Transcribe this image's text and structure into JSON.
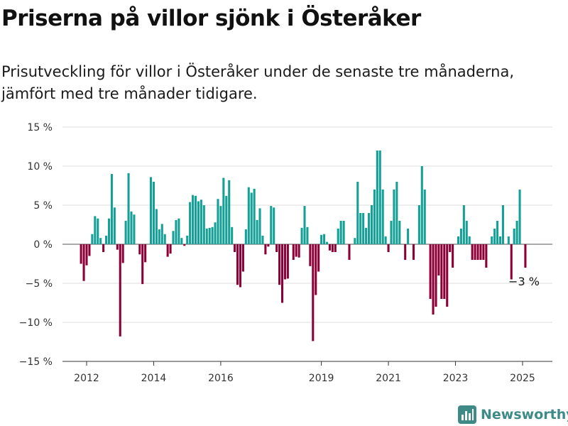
{
  "title": "Priserna på villor sjönk i Österåker",
  "subtitle": "Prisutveckling för villor i Österåker under de senaste tre månaderna, jämfört med tre månader tidigare.",
  "logo": {
    "text": "Newsworthy",
    "icon": "bar-chart-logo-icon"
  },
  "colors": {
    "positive": "#14a096",
    "negative": "#8c0037",
    "grid": "#dddddd",
    "axis": "#333333",
    "logo": "#3d8a87"
  },
  "chart_data": {
    "type": "bar",
    "x_start": "2011-11",
    "x_frequency": "monthly",
    "xticks": [
      {
        "label": "2012",
        "date": "2012-01"
      },
      {
        "label": "2014",
        "date": "2014-01"
      },
      {
        "label": "2016",
        "date": "2016-01"
      },
      {
        "label": "2019",
        "date": "2019-01"
      },
      {
        "label": "2021",
        "date": "2021-01"
      },
      {
        "label": "2023",
        "date": "2023-01"
      },
      {
        "label": "2025",
        "date": "2025-01"
      }
    ],
    "yticks": [
      15,
      10,
      5,
      0,
      -5,
      -10,
      -15
    ],
    "ytick_labels": [
      "15 %",
      "10 %",
      "5 %",
      "0 %",
      "−5 %",
      "−10 %",
      "−15 %"
    ],
    "ylim": [
      -15,
      15
    ],
    "grid": true,
    "annotation": {
      "text": "−3 %",
      "date": "2025-02",
      "value": -3
    },
    "values": [
      -2.5,
      -4.7,
      -2.7,
      -1.5,
      1.3,
      3.6,
      3.3,
      0.8,
      -1.0,
      1.1,
      3.3,
      9.0,
      4.7,
      -0.7,
      -11.8,
      -2.4,
      3.0,
      9.1,
      4.2,
      3.8,
      0.0,
      -1.3,
      -5.1,
      -2.3,
      0.0,
      8.6,
      8.0,
      4.5,
      1.9,
      2.6,
      1.3,
      -1.6,
      -1.2,
      1.7,
      3.1,
      3.3,
      0.8,
      -0.2,
      1.1,
      5.4,
      6.3,
      6.2,
      5.5,
      5.7,
      5.0,
      2.0,
      2.1,
      2.2,
      2.8,
      5.8,
      4.9,
      8.5,
      6.2,
      8.2,
      2.2,
      -1.0,
      -5.2,
      -5.5,
      -3.5,
      1.9,
      7.3,
      6.6,
      7.1,
      3.1,
      4.6,
      1.1,
      -1.3,
      -0.3,
      4.9,
      4.7,
      -1.0,
      -5.2,
      -7.5,
      -4.5,
      -4.4,
      0.0,
      -2.0,
      -1.6,
      -1.7,
      2.1,
      4.9,
      2.2,
      -2.8,
      -12.4,
      -6.5,
      -3.5,
      1.2,
      1.3,
      0.3,
      -0.8,
      -1.0,
      -1.0,
      2.0,
      3.0,
      3.0,
      0.0,
      -2.0,
      0.0,
      0.8,
      8.0,
      4.0,
      4.0,
      2.1,
      4.0,
      5.0,
      7.0,
      12.0,
      12.0,
      7.0,
      1.0,
      -1.0,
      3.0,
      7.0,
      8.0,
      3.0,
      0.0,
      -2.0,
      2.0,
      0.0,
      -2.0,
      0.0,
      5.0,
      10.0,
      7.0,
      0.0,
      -7.0,
      -9.0,
      -8.0,
      -4.0,
      -7.0,
      -7.0,
      -8.0,
      -1.0,
      -3.0,
      0.0,
      1.0,
      2.0,
      5.0,
      3.0,
      1.0,
      -2.0,
      -2.0,
      -2.0,
      -2.0,
      -2.0,
      -3.0,
      0.0,
      1.0,
      2.0,
      3.0,
      1.0,
      5.0,
      0.0,
      1.0,
      -4.5,
      2.0,
      3.0,
      7.0,
      0.0,
      -3.0
    ]
  }
}
